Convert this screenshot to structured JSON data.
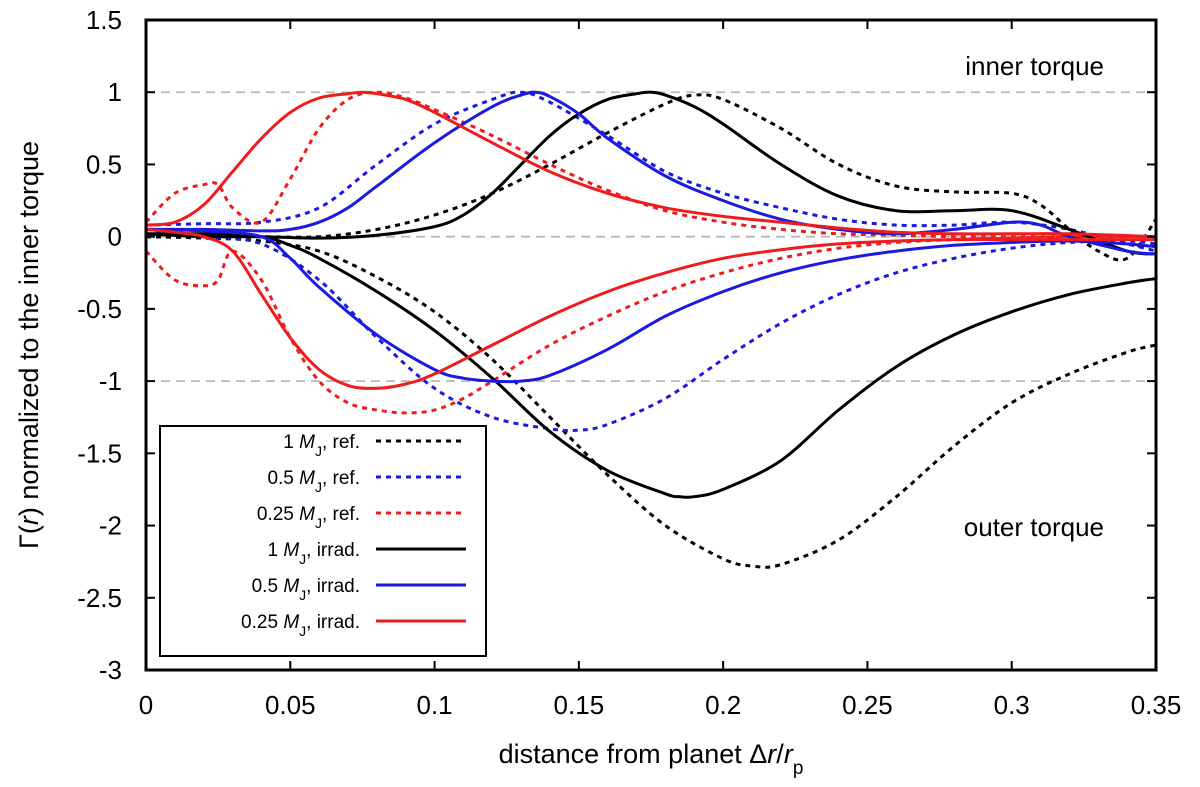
{
  "chart_data": {
    "type": "line",
    "xlabel": {
      "prefix": "distance from planet ",
      "delta": "Δ",
      "r": "r",
      "slash": "/",
      "rp": "r",
      "sub": "p"
    },
    "ylabel": {
      "gamma": "Γ(",
      "r": "r",
      "rest": ") normalized to the inner torque"
    },
    "xlim": [
      0,
      0.35
    ],
    "ylim": [
      -3,
      1.5
    ],
    "x_ticks": [
      0,
      0.05,
      0.1,
      0.15,
      0.2,
      0.25,
      0.3,
      0.35
    ],
    "x_tick_labels": [
      "0",
      "0.05",
      "0.1",
      "0.15",
      "0.2",
      "0.25",
      "0.3",
      "0.35"
    ],
    "y_ticks": [
      1.5,
      1,
      0.5,
      0,
      -0.5,
      -1,
      -1.5,
      -2,
      -2.5,
      -3
    ],
    "y_tick_labels": [
      "1.5",
      "1",
      "0.5",
      "0",
      "-0.5",
      "-1",
      "-1.5",
      "-2",
      "-2.5",
      "-3"
    ],
    "reference_lines": [
      1,
      0,
      -1
    ],
    "annotations": {
      "inner": "inner torque",
      "outer": "outer torque"
    },
    "legend_position": "bottom-left",
    "series": [
      {
        "name": "1 MJ, ref.",
        "mass": "1",
        "m": "M",
        "sub": "J",
        "suffix": ", ref.",
        "color": "#000000",
        "style": "dotted",
        "inner": {
          "x": [
            0,
            0.02,
            0.04,
            0.06,
            0.08,
            0.1,
            0.12,
            0.14,
            0.16,
            0.18,
            0.19,
            0.2,
            0.22,
            0.24,
            0.26,
            0.28,
            0.3,
            0.31,
            0.32,
            0.33,
            0.34,
            0.35
          ],
          "y": [
            0,
            0.0,
            0.0,
            0.0,
            0.05,
            0.15,
            0.3,
            0.5,
            0.72,
            0.92,
            0.98,
            0.95,
            0.75,
            0.5,
            0.35,
            0.31,
            0.3,
            0.22,
            0.05,
            -0.1,
            -0.15,
            0.12
          ]
        },
        "outer": {
          "x": [
            0,
            0.02,
            0.04,
            0.06,
            0.08,
            0.1,
            0.12,
            0.14,
            0.16,
            0.18,
            0.2,
            0.21,
            0.22,
            0.24,
            0.26,
            0.28,
            0.3,
            0.32,
            0.34,
            0.35
          ],
          "y": [
            0,
            -0.01,
            -0.03,
            -0.1,
            -0.28,
            -0.52,
            -0.85,
            -1.25,
            -1.65,
            -2.0,
            -2.23,
            -2.28,
            -2.27,
            -2.1,
            -1.8,
            -1.45,
            -1.15,
            -0.95,
            -0.8,
            -0.75
          ]
        }
      },
      {
        "name": "0.5 MJ, ref.",
        "mass": "0.5",
        "m": "M",
        "sub": "J",
        "suffix": ", ref.",
        "color": "#1a1ae0",
        "style": "dotted",
        "inner": {
          "x": [
            0,
            0.02,
            0.04,
            0.06,
            0.08,
            0.1,
            0.12,
            0.13,
            0.14,
            0.16,
            0.18,
            0.2,
            0.22,
            0.24,
            0.26,
            0.28,
            0.3,
            0.32,
            0.34,
            0.35
          ],
          "y": [
            0.08,
            0.09,
            0.1,
            0.2,
            0.5,
            0.78,
            0.95,
            1.0,
            0.93,
            0.7,
            0.45,
            0.3,
            0.2,
            0.12,
            0.08,
            0.08,
            0.1,
            0.05,
            -0.05,
            -0.1
          ]
        },
        "outer": {
          "x": [
            0,
            0.02,
            0.04,
            0.06,
            0.08,
            0.1,
            0.12,
            0.14,
            0.15,
            0.16,
            0.18,
            0.2,
            0.22,
            0.24,
            0.26,
            0.28,
            0.3,
            0.32,
            0.34,
            0.35
          ],
          "y": [
            0.05,
            0.0,
            -0.05,
            -0.3,
            -0.7,
            -1.05,
            -1.25,
            -1.33,
            -1.34,
            -1.3,
            -1.12,
            -0.85,
            -0.6,
            -0.4,
            -0.25,
            -0.15,
            -0.08,
            -0.04,
            -0.03,
            -0.05
          ]
        }
      },
      {
        "name": "0.25 MJ, ref.",
        "mass": "0.25",
        "m": "M",
        "sub": "J",
        "suffix": ", ref.",
        "color": "#ee1c1c",
        "style": "dotted",
        "inner": {
          "x": [
            0,
            0.01,
            0.02,
            0.025,
            0.03,
            0.04,
            0.05,
            0.06,
            0.07,
            0.08,
            0.09,
            0.1,
            0.12,
            0.14,
            0.16,
            0.18,
            0.2,
            0.22,
            0.24,
            0.26,
            0.28,
            0.3,
            0.32,
            0.35
          ],
          "y": [
            0.1,
            0.3,
            0.36,
            0.36,
            0.2,
            0.1,
            0.4,
            0.75,
            0.95,
            1.0,
            0.96,
            0.88,
            0.7,
            0.5,
            0.32,
            0.18,
            0.1,
            0.05,
            0.02,
            0.01,
            0.0,
            0.0,
            0.0,
            0.0
          ]
        },
        "outer": {
          "x": [
            0,
            0.01,
            0.02,
            0.025,
            0.03,
            0.04,
            0.05,
            0.06,
            0.07,
            0.08,
            0.09,
            0.1,
            0.11,
            0.12,
            0.14,
            0.16,
            0.18,
            0.2,
            0.22,
            0.24,
            0.26,
            0.28,
            0.3,
            0.32,
            0.35
          ],
          "y": [
            -0.1,
            -0.3,
            -0.34,
            -0.3,
            -0.1,
            -0.3,
            -0.7,
            -1.0,
            -1.15,
            -1.2,
            -1.22,
            -1.2,
            -1.12,
            -1.0,
            -0.75,
            -0.55,
            -0.38,
            -0.25,
            -0.15,
            -0.08,
            -0.04,
            -0.02,
            -0.01,
            0.0,
            0.0
          ]
        }
      },
      {
        "name": "1 MJ, irrad.",
        "mass": "1",
        "m": "M",
        "sub": "J",
        "suffix": ", irrad.",
        "color": "#000000",
        "style": "solid",
        "inner": {
          "x": [
            0,
            0.02,
            0.04,
            0.06,
            0.08,
            0.1,
            0.11,
            0.12,
            0.13,
            0.14,
            0.15,
            0.16,
            0.17,
            0.175,
            0.18,
            0.19,
            0.2,
            0.22,
            0.24,
            0.26,
            0.28,
            0.3,
            0.32,
            0.34,
            0.35
          ],
          "y": [
            0.02,
            0.0,
            0.0,
            -0.01,
            0.01,
            0.07,
            0.15,
            0.3,
            0.5,
            0.7,
            0.85,
            0.95,
            0.99,
            1.0,
            0.98,
            0.9,
            0.78,
            0.5,
            0.28,
            0.18,
            0.18,
            0.18,
            0.05,
            -0.1,
            -0.12
          ]
        },
        "outer": {
          "x": [
            0,
            0.02,
            0.04,
            0.05,
            0.06,
            0.08,
            0.1,
            0.12,
            0.14,
            0.16,
            0.18,
            0.185,
            0.19,
            0.2,
            0.22,
            0.24,
            0.26,
            0.28,
            0.3,
            0.32,
            0.34,
            0.35
          ],
          "y": [
            0.02,
            0.02,
            0.0,
            -0.06,
            -0.15,
            -0.38,
            -0.65,
            -0.98,
            -1.35,
            -1.62,
            -1.78,
            -1.8,
            -1.8,
            -1.75,
            -1.55,
            -1.2,
            -0.9,
            -0.68,
            -0.52,
            -0.4,
            -0.32,
            -0.29
          ]
        }
      },
      {
        "name": "0.5 MJ, irrad.",
        "mass": "0.5",
        "m": "M",
        "sub": "J",
        "suffix": ", irrad.",
        "color": "#1a1ae0",
        "style": "solid",
        "inner": {
          "x": [
            0,
            0.02,
            0.04,
            0.05,
            0.06,
            0.07,
            0.08,
            0.1,
            0.12,
            0.13,
            0.135,
            0.14,
            0.15,
            0.16,
            0.18,
            0.2,
            0.22,
            0.24,
            0.26,
            0.28,
            0.3,
            0.31,
            0.32,
            0.34,
            0.35
          ],
          "y": [
            0.05,
            0.05,
            0.04,
            0.05,
            0.1,
            0.2,
            0.35,
            0.65,
            0.9,
            0.98,
            1.0,
            0.97,
            0.85,
            0.68,
            0.42,
            0.25,
            0.12,
            0.05,
            0.02,
            0.05,
            0.1,
            0.08,
            0.0,
            -0.1,
            -0.12
          ]
        },
        "outer": {
          "x": [
            0,
            0.02,
            0.04,
            0.05,
            0.06,
            0.08,
            0.1,
            0.11,
            0.12,
            0.13,
            0.14,
            0.16,
            0.18,
            0.2,
            0.22,
            0.24,
            0.26,
            0.28,
            0.3,
            0.32,
            0.34,
            0.35
          ],
          "y": [
            0.05,
            0.04,
            0.0,
            -0.15,
            -0.35,
            -0.68,
            -0.92,
            -0.98,
            -1.0,
            -1.0,
            -0.96,
            -0.78,
            -0.55,
            -0.38,
            -0.25,
            -0.16,
            -0.1,
            -0.06,
            -0.04,
            -0.03,
            -0.05,
            -0.07
          ]
        }
      },
      {
        "name": "0.25 MJ, irrad.",
        "mass": "0.25",
        "m": "M",
        "sub": "J",
        "suffix": ", irrad.",
        "color": "#ee1c1c",
        "style": "solid",
        "inner": {
          "x": [
            0,
            0.01,
            0.02,
            0.03,
            0.04,
            0.05,
            0.06,
            0.07,
            0.075,
            0.08,
            0.09,
            0.1,
            0.12,
            0.14,
            0.16,
            0.18,
            0.2,
            0.22,
            0.24,
            0.26,
            0.28,
            0.3,
            0.32,
            0.35
          ],
          "y": [
            0.08,
            0.1,
            0.22,
            0.45,
            0.68,
            0.86,
            0.96,
            0.99,
            1.0,
            0.99,
            0.95,
            0.86,
            0.65,
            0.45,
            0.3,
            0.2,
            0.14,
            0.1,
            0.06,
            0.03,
            0.02,
            0.02,
            0.02,
            0.0
          ]
        },
        "outer": {
          "x": [
            0,
            0.01,
            0.02,
            0.03,
            0.04,
            0.05,
            0.06,
            0.07,
            0.08,
            0.09,
            0.1,
            0.12,
            0.14,
            0.16,
            0.18,
            0.2,
            0.22,
            0.24,
            0.26,
            0.28,
            0.3,
            0.32,
            0.35
          ],
          "y": [
            0.05,
            0.03,
            0.0,
            -0.1,
            -0.4,
            -0.7,
            -0.92,
            -1.03,
            -1.05,
            -1.02,
            -0.95,
            -0.75,
            -0.55,
            -0.38,
            -0.25,
            -0.15,
            -0.09,
            -0.05,
            -0.03,
            -0.02,
            -0.02,
            -0.02,
            -0.02
          ]
        }
      }
    ]
  }
}
